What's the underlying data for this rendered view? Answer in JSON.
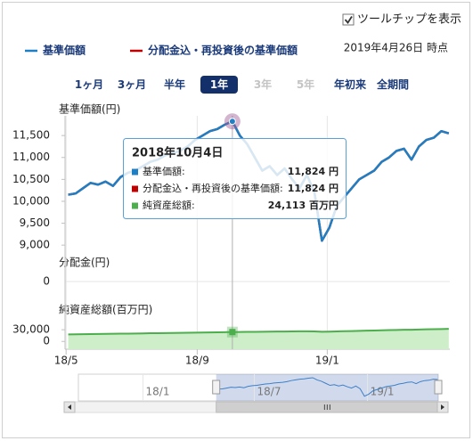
{
  "ui": {
    "tooltip_toggle": {
      "label": "ツールチップを表示",
      "checked": true
    },
    "as_of": "2019年4月26日 時点",
    "periods": [
      {
        "label": "1ヶ月",
        "state": "normal"
      },
      {
        "label": "3ヶ月",
        "state": "normal"
      },
      {
        "label": "半年",
        "state": "normal"
      },
      {
        "label": "1年",
        "state": "selected"
      },
      {
        "label": "3年",
        "state": "disabled"
      },
      {
        "label": "5年",
        "state": "disabled"
      },
      {
        "label": "年初来",
        "state": "normal"
      },
      {
        "label": "全期間",
        "state": "normal"
      }
    ]
  },
  "chart_data": {
    "type": "line",
    "ylabel": "基準価額(円)",
    "x": [
      "2018-05-03",
      "2018-05-10",
      "2018-05-17",
      "2018-05-24",
      "2018-05-31",
      "2018-06-07",
      "2018-06-14",
      "2018-06-21",
      "2018-06-28",
      "2018-07-05",
      "2018-07-12",
      "2018-07-19",
      "2018-07-26",
      "2018-08-02",
      "2018-08-09",
      "2018-08-16",
      "2018-08-23",
      "2018-08-30",
      "2018-09-06",
      "2018-09-13",
      "2018-09-20",
      "2018-09-27",
      "2018-10-04",
      "2018-10-11",
      "2018-10-18",
      "2018-10-25",
      "2018-11-01",
      "2018-11-08",
      "2018-11-15",
      "2018-11-22",
      "2018-11-29",
      "2018-12-06",
      "2018-12-13",
      "2018-12-20",
      "2018-12-27",
      "2019-01-03",
      "2019-01-10",
      "2019-01-17",
      "2019-01-24",
      "2019-01-31",
      "2019-02-07",
      "2019-02-14",
      "2019-02-21",
      "2019-02-28",
      "2019-03-07",
      "2019-03-14",
      "2019-03-21",
      "2019-03-28",
      "2019-04-04",
      "2019-04-11",
      "2019-04-18",
      "2019-04-25"
    ],
    "xlim": [
      "2018-04-30",
      "2019-04-26"
    ],
    "xticks": [
      {
        "value": "2018-05-01",
        "label": "18/5"
      },
      {
        "value": "2018-09-01",
        "label": "18/9"
      },
      {
        "value": "2019-01-01",
        "label": "19/1"
      }
    ],
    "ylim": [
      8800,
      11950
    ],
    "yticks": [
      {
        "value": 9000,
        "label": "9,000"
      },
      {
        "value": 9500,
        "label": "9,500"
      },
      {
        "value": 10000,
        "label": "10,000"
      },
      {
        "value": 10500,
        "label": "10,500"
      },
      {
        "value": 11000,
        "label": "11,000"
      },
      {
        "value": 11500,
        "label": "11,500"
      }
    ],
    "series": [
      {
        "name": "分配金込・再投資後の基準価額",
        "color": "#c00000",
        "values": [
          10150,
          10180,
          10300,
          10420,
          10380,
          10450,
          10350,
          10550,
          10650,
          10700,
          10800,
          10900,
          10950,
          11050,
          11100,
          11150,
          11250,
          11400,
          11500,
          11600,
          11650,
          11750,
          11824,
          11500,
          11300,
          11000,
          10700,
          10800,
          10600,
          10750,
          10500,
          10300,
          10600,
          10200,
          9100,
          9400,
          9900,
          10100,
          10300,
          10500,
          10600,
          10700,
          10900,
          11000,
          11150,
          11200,
          10950,
          11250,
          11400,
          11450,
          11600,
          11550
        ]
      },
      {
        "name": "基準価額",
        "color": "#1f7fc4",
        "values": [
          10150,
          10180,
          10300,
          10420,
          10380,
          10450,
          10350,
          10550,
          10650,
          10700,
          10800,
          10900,
          10950,
          11050,
          11100,
          11150,
          11250,
          11400,
          11500,
          11600,
          11650,
          11750,
          11824,
          11500,
          11300,
          11000,
          10700,
          10800,
          10600,
          10750,
          10500,
          10300,
          10600,
          10200,
          9100,
          9400,
          9900,
          10100,
          10300,
          10500,
          10600,
          10700,
          10900,
          11000,
          11150,
          11200,
          10950,
          11250,
          11400,
          11450,
          11600,
          11550
        ]
      }
    ],
    "legend_order": [
      1,
      0
    ],
    "distribution": {
      "ylabel": "分配金(円)",
      "yticks": [
        0
      ]
    },
    "nav": {
      "ylabel": "純資産総額(百万円)",
      "color": "#4cae4c",
      "values": [
        18000,
        18300,
        18500,
        18800,
        19100,
        19300,
        19600,
        19900,
        20100,
        20400,
        20700,
        21000,
        21200,
        21500,
        21800,
        22000,
        22300,
        22600,
        22900,
        23200,
        23500,
        23800,
        24113,
        24300,
        24500,
        24700,
        24900,
        25100,
        25300,
        25500,
        25700,
        25900,
        26100,
        25600,
        24800,
        25200,
        25700,
        26200,
        26700,
        27200,
        27700,
        28100,
        28500,
        29000,
        29400,
        29900,
        30100,
        30600,
        31000,
        31400,
        31800,
        32200
      ],
      "ylim": [
        -20000,
        57700
      ],
      "yticks": [
        0,
        {
          "value": 30000,
          "label": "30,000"
        }
      ]
    },
    "tooltip": {
      "title": "2018年10月4日",
      "rows": [
        {
          "name": "基準価額:",
          "value": "11,824 円"
        },
        {
          "name": "分配金込・再投資後の基準価額:",
          "value": "11,824 円"
        },
        {
          "name": "純資産総額:",
          "value": "24,113 百万円"
        }
      ]
    },
    "navigator": {
      "xlim": [
        "2017-09-18",
        "2019-04-26"
      ],
      "xticks": [
        {
          "value": "2018-01-01",
          "label": "18/1"
        },
        {
          "value": "2018-07-01",
          "label": "18/7"
        },
        {
          "value": "2019-01-01",
          "label": "19/1"
        }
      ]
    }
  }
}
